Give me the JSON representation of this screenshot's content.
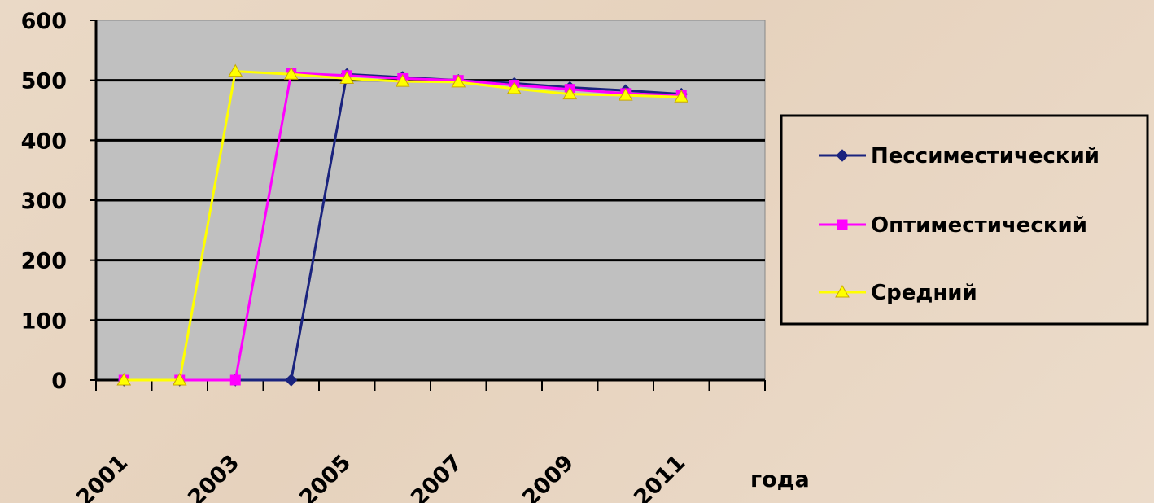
{
  "chart_data": {
    "type": "line",
    "categories": [
      "2001",
      "2002",
      "2003",
      "2004",
      "2005",
      "2006",
      "2007",
      "2008",
      "2009",
      "2010",
      "2011"
    ],
    "x_tick_labels": [
      "2001",
      "2003",
      "2005",
      "2007",
      "2009",
      "2011"
    ],
    "xlabel": "года",
    "ylabel": "",
    "ylim": [
      0,
      600
    ],
    "y_ticks": [
      0,
      100,
      200,
      300,
      400,
      500,
      600
    ],
    "grid": true,
    "legend_position": "right",
    "series": [
      {
        "name": "Пессиместический",
        "color": "#1a237e",
        "marker": "diamond",
        "values": [
          0,
          0,
          0,
          0,
          510,
          505,
          500,
          495,
          488,
          483,
          477
        ]
      },
      {
        "name": "Оптиместический",
        "color": "#ff00ff",
        "marker": "square",
        "values": [
          0,
          0,
          0,
          512,
          508,
          503,
          500,
          492,
          485,
          478,
          475
        ]
      },
      {
        "name": "Средний",
        "color": "#ffff00",
        "marker": "triangle",
        "values": [
          0,
          0,
          515,
          510,
          503,
          498,
          497,
          486,
          477,
          475,
          472
        ]
      }
    ],
    "colors": {
      "plot_background": "#c0c0c0",
      "gridline": "#000000"
    }
  }
}
